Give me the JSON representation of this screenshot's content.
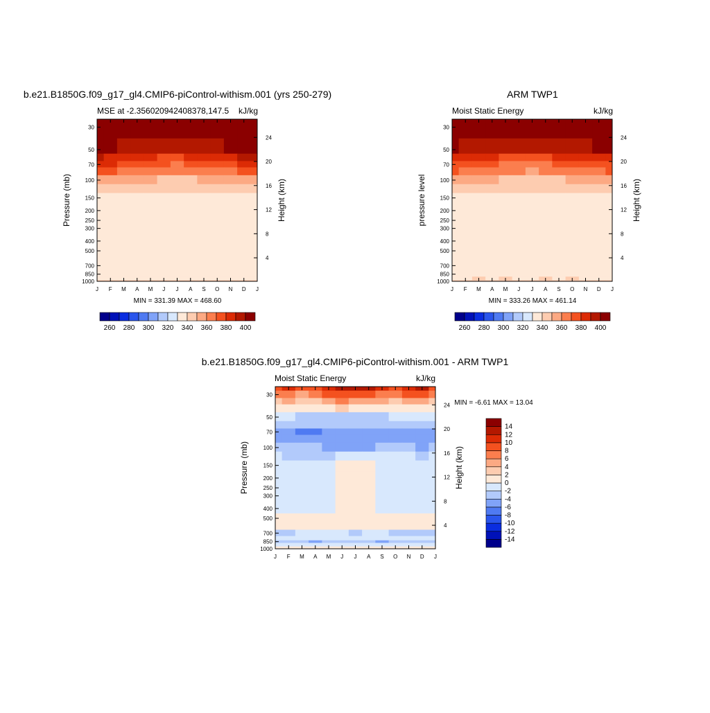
{
  "colors": {
    "sequential": [
      "#00008b",
      "#0011b8",
      "#0a2de0",
      "#2a55ec",
      "#4f7af2",
      "#80a3f8",
      "#b2cafb",
      "#d8e8fd",
      "#fee9d8",
      "#fdccb0",
      "#fca983",
      "#fb7e4e",
      "#f4511f",
      "#dc2b05",
      "#b31800",
      "#8b0000"
    ],
    "diverging": [
      "#00008b",
      "#0011b8",
      "#0a2de0",
      "#2a55ec",
      "#4f7af2",
      "#80a3f8",
      "#b2cafb",
      "#d8e8fd",
      "#fee9d8",
      "#fdccb0",
      "#fca983",
      "#fb7e4e",
      "#f4511f",
      "#dc2b05",
      "#b31800",
      "#8b0000"
    ]
  },
  "chart_data": [
    {
      "type": "heatmap",
      "title": "b.e21.B1850G.f09_g17_gl4.CMIP6-piControl-withism.001 (yrs 250-279)",
      "subtitle_left": "MSE at -2.356020942408378,147.5",
      "subtitle_right": "kJ/kg",
      "ylabel": "Pressure (mb)",
      "ylabel_right": "Height (km)",
      "x_ticks": [
        "J",
        "F",
        "M",
        "A",
        "M",
        "J",
        "J",
        "A",
        "S",
        "O",
        "N",
        "D",
        "J"
      ],
      "p_ticks": [
        30,
        50,
        70,
        100,
        150,
        200,
        250,
        300,
        400,
        500,
        700,
        850,
        1000
      ],
      "z_ticks": [
        4,
        8,
        12,
        16,
        20,
        24
      ],
      "min_max": "MIN = 331.39   MAX = 468.60",
      "levels": [
        260,
        280,
        300,
        320,
        340,
        360,
        380,
        400
      ],
      "label_levels": [
        260,
        280,
        300,
        320,
        340,
        360,
        380,
        400
      ],
      "level_step": 10,
      "y_levels": [
        30,
        50,
        60,
        70,
        80,
        100,
        120,
        150,
        200,
        300,
        400,
        700,
        850,
        950,
        1000
      ],
      "z_values": [
        [
          472,
          470,
          469,
          468,
          467,
          466,
          466,
          466,
          467,
          468,
          469,
          470,
          472
        ],
        [
          405,
          402,
          399,
          396,
          393,
          392,
          392,
          393,
          395,
          398,
          402,
          404,
          405
        ],
        [
          392,
          389,
          386,
          383,
          380,
          379,
          378,
          380,
          382,
          385,
          389,
          391,
          392
        ],
        [
          382,
          380,
          377,
          374,
          371,
          370,
          369,
          370,
          372,
          375,
          379,
          381,
          382
        ],
        [
          372,
          370,
          368,
          365,
          362,
          361,
          360,
          361,
          363,
          366,
          369,
          371,
          372
        ],
        [
          358,
          356,
          354,
          352,
          350,
          349,
          348,
          349,
          350,
          352,
          354,
          356,
          358
        ],
        [
          345,
          344,
          343,
          342,
          341,
          340,
          340,
          340,
          341,
          342,
          343,
          344,
          345
        ],
        [
          337,
          337,
          337,
          337,
          337,
          337,
          337,
          337,
          337,
          337,
          337,
          337,
          337
        ],
        [
          336,
          336,
          336,
          336,
          336,
          336,
          336,
          336,
          336,
          336,
          336,
          336,
          336
        ],
        [
          334,
          334,
          334,
          334,
          335,
          335,
          335,
          335,
          334,
          334,
          334,
          334,
          334
        ],
        [
          331,
          331,
          331,
          331,
          331,
          332,
          331,
          332,
          332,
          333,
          331,
          331,
          331
        ],
        [
          330,
          330,
          330,
          330,
          330,
          330,
          330,
          330,
          330,
          330,
          330,
          330,
          330
        ],
        [
          332,
          332,
          332,
          332,
          332,
          332,
          332,
          332,
          332,
          332,
          332,
          332,
          332
        ],
        [
          338,
          338,
          338,
          338,
          338,
          338,
          338,
          338,
          338,
          338,
          338,
          338,
          338
        ],
        [
          341,
          341,
          341,
          341,
          341,
          341,
          341,
          341,
          341,
          341,
          341,
          341,
          341
        ]
      ]
    },
    {
      "type": "heatmap",
      "title": "ARM TWP1",
      "subtitle_left": "Moist Static Energy",
      "subtitle_right": "kJ/kg",
      "ylabel": "pressure level",
      "ylabel_right": "Height (km)",
      "x_ticks": [
        "J",
        "F",
        "M",
        "A",
        "M",
        "J",
        "J",
        "A",
        "S",
        "O",
        "N",
        "D",
        "J"
      ],
      "p_ticks": [
        30,
        50,
        70,
        100,
        150,
        200,
        250,
        300,
        400,
        500,
        700,
        850,
        1000
      ],
      "z_ticks": [
        4,
        8,
        12,
        16,
        20,
        24
      ],
      "min_max": "MIN = 333.26   MAX = 461.14",
      "levels": [
        260,
        280,
        300,
        320,
        340,
        360,
        380,
        400
      ],
      "label_levels": [
        260,
        280,
        300,
        320,
        340,
        360,
        380,
        400
      ],
      "level_step": 10,
      "y_levels": [
        30,
        50,
        60,
        70,
        80,
        100,
        120,
        150,
        200,
        300,
        400,
        700,
        850,
        950,
        1000
      ],
      "z_values": [
        [
          462,
          460,
          459,
          458,
          457,
          456,
          456,
          456,
          457,
          458,
          459,
          460,
          462
        ],
        [
          400,
          398,
          396,
          393,
          391,
          390,
          390,
          391,
          392,
          395,
          398,
          400,
          400
        ],
        [
          389,
          386,
          384,
          381,
          378,
          377,
          377,
          378,
          380,
          383,
          386,
          388,
          389
        ],
        [
          379,
          377,
          374,
          372,
          369,
          368,
          367,
          368,
          370,
          373,
          376,
          378,
          379
        ],
        [
          370,
          368,
          365,
          363,
          361,
          360,
          359,
          360,
          362,
          364,
          367,
          369,
          370
        ],
        [
          356,
          354,
          352,
          350,
          349,
          348,
          347,
          348,
          349,
          351,
          353,
          355,
          356
        ],
        [
          343,
          342,
          341,
          341,
          340,
          340,
          340,
          340,
          340,
          341,
          342,
          343,
          343
        ],
        [
          337,
          337,
          337,
          337,
          337,
          337,
          337,
          337,
          337,
          337,
          337,
          337,
          337
        ],
        [
          336,
          336,
          336,
          336,
          336,
          336,
          336,
          336,
          336,
          336,
          336,
          336,
          336
        ],
        [
          334,
          334,
          334,
          334,
          334,
          334,
          334,
          334,
          334,
          334,
          334,
          334,
          334
        ],
        [
          331,
          331,
          331,
          331,
          331,
          332,
          332,
          332,
          332,
          331,
          331,
          331,
          331
        ],
        [
          332,
          331,
          331,
          331,
          331,
          331,
          331,
          331,
          331,
          331,
          331,
          331,
          332
        ],
        [
          333,
          333,
          333,
          333,
          333,
          333,
          333,
          333,
          333,
          333,
          333,
          333,
          333
        ],
        [
          338,
          338,
          341,
          338,
          341,
          338,
          338,
          341,
          338,
          341,
          338,
          338,
          338
        ],
        [
          342,
          342,
          342,
          342,
          342,
          342,
          342,
          342,
          342,
          342,
          342,
          342,
          342
        ]
      ]
    },
    {
      "type": "heatmap",
      "title": "b.e21.B1850G.f09_g17_gl4.CMIP6-piControl-withism.001 - ARM TWP1",
      "subtitle_left": "Moist Static Energy",
      "subtitle_right": "kJ/kg",
      "ylabel": "Pressure (mb)",
      "ylabel_right": "Height (km)",
      "x_ticks": [
        "J",
        "F",
        "M",
        "A",
        "M",
        "J",
        "J",
        "A",
        "S",
        "O",
        "N",
        "D",
        "J"
      ],
      "p_ticks": [
        30,
        50,
        70,
        100,
        150,
        200,
        250,
        300,
        400,
        500,
        700,
        850,
        1000
      ],
      "z_ticks": [
        4,
        8,
        12,
        16,
        20,
        24
      ],
      "min_max": "MIN =  -6.61 MAX =  13.04",
      "levels": [
        -14,
        -12,
        -10,
        -8,
        -6,
        -4,
        -2,
        0,
        2,
        4,
        6,
        8,
        10,
        12,
        14
      ],
      "label_levels": [
        -14,
        -12,
        -10,
        -8,
        -6,
        -4,
        -2,
        0,
        2,
        4,
        6,
        8,
        10,
        12,
        14
      ],
      "level_step": 2,
      "y_levels": [
        25,
        30,
        35,
        40,
        50,
        60,
        70,
        80,
        100,
        120,
        150,
        200,
        300,
        400,
        500,
        600,
        700,
        800,
        850,
        900,
        1000
      ],
      "z_values": [
        [
          9,
          10,
          8,
          9,
          11,
          12,
          13,
          12,
          10,
          9,
          11,
          12,
          9
        ],
        [
          6,
          7,
          5,
          6,
          8,
          9,
          9,
          8,
          7,
          6,
          8,
          9,
          6
        ],
        [
          3,
          4,
          2,
          3,
          5,
          6,
          5,
          5,
          4,
          3,
          4,
          5,
          3
        ],
        [
          0.5,
          1,
          0.3,
          0.5,
          1.5,
          2,
          1.5,
          1.5,
          1,
          0.5,
          1,
          1.5,
          0.5
        ],
        [
          -1.5,
          -2,
          -2.5,
          -3,
          -3,
          -2.5,
          -2.5,
          -2.5,
          -2.5,
          -2,
          -1.5,
          -2,
          -1.5
        ],
        [
          -2.5,
          -3.5,
          -4,
          -4,
          -4,
          -3.5,
          -3.5,
          -3.5,
          -3.5,
          -3,
          -3,
          -3.5,
          -2.5
        ],
        [
          -4.5,
          -5.5,
          -6.5,
          -6.5,
          -5.5,
          -5,
          -5,
          -5,
          -5,
          -5,
          -5,
          -5,
          -4.5
        ],
        [
          -4.5,
          -5.5,
          -6,
          -6,
          -5.5,
          -5.5,
          -5.5,
          -5.5,
          -5,
          -5,
          -5,
          -5,
          -4.5
        ],
        [
          -3.5,
          -4,
          -4,
          -4,
          -4.5,
          -4.5,
          -4.5,
          -4.5,
          -4,
          -4,
          -4,
          -4.5,
          -3.5
        ],
        [
          -1.5,
          -2.5,
          -2.5,
          -2.5,
          -2.5,
          -2,
          -2,
          -2,
          -2,
          -2,
          -2,
          -2.5,
          -1.5
        ],
        [
          -1,
          -1,
          -1,
          -1,
          -1,
          0.5,
          0.8,
          0.5,
          -0.5,
          -1,
          -1,
          -1,
          -1
        ],
        [
          -1,
          -1,
          -1,
          -1,
          -1,
          0.6,
          0.9,
          0.6,
          -0.5,
          -1,
          -1,
          -1,
          -1
        ],
        [
          -1,
          -1,
          -1,
          -1,
          -1,
          0.6,
          0.8,
          0.5,
          -0.5,
          -1,
          -1,
          -1,
          -1
        ],
        [
          -0.8,
          -0.8,
          -0.8,
          -0.8,
          -0.6,
          0.5,
          0.6,
          0.4,
          -0.3,
          -0.6,
          -0.8,
          -0.8,
          -0.8
        ],
        [
          0.5,
          0.4,
          0.4,
          0.4,
          0.4,
          0.6,
          1.5,
          0.6,
          0.4,
          0.4,
          0.4,
          0.5,
          0.5
        ],
        [
          0.3,
          0.2,
          0.2,
          0.2,
          0.2,
          0.2,
          0.2,
          0.2,
          0.2,
          0.2,
          0.2,
          0.3,
          0.3
        ],
        [
          -2.5,
          -2.5,
          -2,
          -2,
          -2,
          -2,
          -2.5,
          -2,
          -2,
          -2.5,
          -2.5,
          -2.5,
          -2.5
        ],
        [
          -1.5,
          -1.5,
          -1,
          -1,
          -1,
          -1.5,
          -1.5,
          -1.5,
          -1.5,
          -2,
          -2,
          -2,
          -1.5
        ],
        [
          -2.5,
          -3,
          -2.5,
          -4.2,
          -2.5,
          -2.5,
          -2.5,
          -2.5,
          -4.2,
          -2.5,
          -3.5,
          -3.5,
          -2.5
        ],
        [
          -1.5,
          -1.5,
          -1,
          -1,
          -1,
          -1.5,
          -1,
          -1,
          -1.5,
          -1,
          -1,
          -1.5,
          -1.5
        ],
        [
          0.5,
          0.5,
          0.5,
          0.5,
          0.5,
          0.5,
          0.5,
          0.5,
          0.5,
          0.5,
          0.5,
          0.5,
          0.5
        ]
      ]
    }
  ]
}
